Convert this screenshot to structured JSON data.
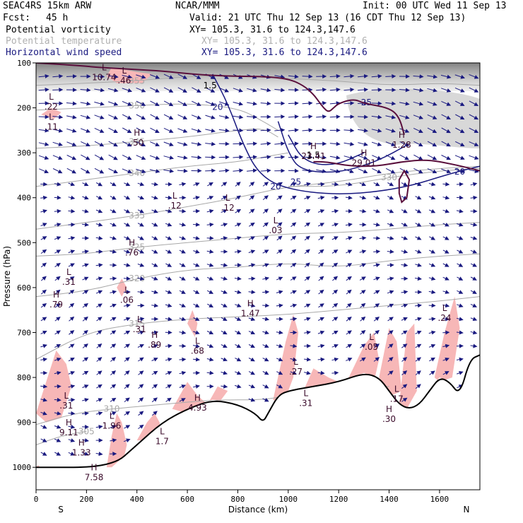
{
  "header": {
    "title": "SEAC4RS 15km ARW",
    "org": "NCAR/MMM",
    "init": "Init: 00 UTC Wed 11 Sep 13",
    "fcst_label": "Fcst:",
    "fcst_value": "45 h",
    "valid": "Valid: 21 UTC Thu 12 Sep 13 (16 CDT Thu 12 Sep 13)",
    "fields": [
      {
        "name": "Potential vorticity",
        "range": "XY= 105.3, 31.6 to 124.3,147.6",
        "color": "#000000"
      },
      {
        "name": "Potential temperature",
        "range": "XY= 105.3, 31.6 to 124.3,147.6",
        "color": "#b0b0b0"
      },
      {
        "name": "Horizontal wind speed",
        "range": "XY= 105.3, 31.6 to 124.3,147.6",
        "color": "#1a1a80"
      }
    ]
  },
  "chart_data": {
    "type": "cross-section",
    "xlabel": "Distance (km)",
    "ylabel": "Pressure (hPa)",
    "xlim": [
      0,
      1760
    ],
    "ylim": [
      100,
      1050
    ],
    "x_ticks": [
      0,
      200,
      400,
      600,
      800,
      1000,
      1200,
      1400,
      1600
    ],
    "y_ticks": [
      100,
      200,
      300,
      400,
      500,
      600,
      700,
      800,
      900,
      1000
    ],
    "left_end_label": "S",
    "right_end_label": "N",
    "colors": {
      "pv_shade": "#f7b7b7",
      "pv_contour": "#5a0f3c",
      "wind": "#1a1a80",
      "theta": "#a8a8a8",
      "terrain": "#000000",
      "upper_shade": "#8c8c8c"
    },
    "theta_contours": [
      {
        "label": "355",
        "points": [
          [
            0,
            150
          ],
          [
            200,
            145
          ],
          [
            400,
            140
          ],
          [
            600,
            130
          ],
          [
            800,
            128
          ],
          [
            1000,
            135
          ],
          [
            1200,
            140
          ],
          [
            1400,
            150
          ],
          [
            1600,
            145
          ],
          [
            1760,
            150
          ]
        ]
      },
      {
        "label": "350",
        "points": [
          [
            0,
            205
          ],
          [
            200,
            200
          ],
          [
            400,
            195
          ],
          [
            600,
            190
          ],
          [
            800,
            200
          ],
          [
            900,
            230
          ],
          [
            960,
            250
          ]
        ]
      },
      {
        "label": "345",
        "points": [
          [
            0,
            290
          ],
          [
            200,
            285
          ],
          [
            400,
            275
          ],
          [
            600,
            265
          ],
          [
            800,
            250
          ],
          [
            900,
            245
          ],
          [
            960,
            265
          ]
        ]
      },
      {
        "label": "340",
        "points": [
          [
            0,
            375
          ],
          [
            200,
            360
          ],
          [
            400,
            345
          ],
          [
            600,
            330
          ],
          [
            800,
            320
          ],
          [
            900,
            310
          ],
          [
            1000,
            300
          ]
        ]
      },
      {
        "label": "335",
        "points": [
          [
            0,
            470
          ],
          [
            200,
            455
          ],
          [
            400,
            440
          ],
          [
            600,
            420
          ],
          [
            800,
            400
          ],
          [
            1000,
            375
          ],
          [
            1200,
            365
          ],
          [
            1400,
            345
          ],
          [
            1600,
            335
          ],
          [
            1760,
            330
          ]
        ]
      },
      {
        "label": "330",
        "points": [
          [
            1000,
            375
          ],
          [
            1200,
            375
          ],
          [
            1400,
            355
          ],
          [
            1600,
            340
          ],
          [
            1760,
            335
          ]
        ]
      },
      {
        "label": "325",
        "points": [
          [
            0,
            530
          ],
          [
            200,
            525
          ],
          [
            400,
            510
          ],
          [
            600,
            500
          ],
          [
            800,
            490
          ],
          [
            1000,
            480
          ],
          [
            1200,
            478
          ],
          [
            1400,
            470
          ],
          [
            1600,
            460
          ],
          [
            1760,
            455
          ]
        ]
      },
      {
        "label": "320",
        "points": [
          [
            0,
            620
          ],
          [
            200,
            608
          ],
          [
            400,
            580
          ],
          [
            600,
            560
          ],
          [
            800,
            555
          ],
          [
            1000,
            545
          ],
          [
            1200,
            555
          ],
          [
            1400,
            540
          ],
          [
            1600,
            530
          ],
          [
            1760,
            525
          ]
        ]
      },
      {
        "label": "315",
        "points": [
          [
            0,
            760
          ],
          [
            200,
            700
          ],
          [
            400,
            680
          ],
          [
            600,
            670
          ],
          [
            800,
            665
          ],
          [
            1000,
            660
          ],
          [
            1200,
            650
          ],
          [
            1400,
            640
          ],
          [
            1600,
            630
          ],
          [
            1760,
            620
          ]
        ]
      },
      {
        "label": "310",
        "points": [
          [
            0,
            905
          ],
          [
            150,
            880
          ],
          [
            300,
            870
          ],
          [
            500,
            860
          ],
          [
            700,
            850
          ],
          [
            900,
            850
          ],
          [
            1000,
            840
          ],
          [
            1200,
            830
          ],
          [
            1400,
            820
          ]
        ]
      },
      {
        "label": "305",
        "points": [
          [
            0,
            950
          ],
          [
            100,
            930
          ],
          [
            200,
            920
          ]
        ]
      }
    ],
    "pv_contour_labels": [
      {
        "label": "1.5",
        "x": 690,
        "p": 150
      },
      {
        "label": "1.5",
        "x": 1100,
        "p": 305
      }
    ],
    "wind_contours": [
      {
        "label": "20",
        "points": [
          [
            700,
            125
          ],
          [
            760,
            190
          ],
          [
            820,
            280
          ],
          [
            880,
            345
          ],
          [
            980,
            380
          ],
          [
            1200,
            395
          ],
          [
            1450,
            380
          ],
          [
            1650,
            345
          ],
          [
            1760,
            330
          ]
        ]
      },
      {
        "label": "25",
        "points": [
          [
            960,
            230
          ],
          [
            1000,
            300
          ],
          [
            1050,
            340
          ],
          [
            1200,
            345
          ],
          [
            1350,
            320
          ],
          [
            1480,
            280
          ]
        ]
      },
      {
        "label": "30",
        "points": [
          [
            1000,
            260
          ],
          [
            1060,
            320
          ],
          [
            1180,
            330
          ],
          [
            1300,
            300
          ]
        ]
      }
    ],
    "wind_labels": [
      {
        "label": "20",
        "x": 720,
        "p": 198
      },
      {
        "label": "25",
        "x": 1310,
        "p": 188
      },
      {
        "label": "20",
        "x": 950,
        "p": 375
      },
      {
        "label": "25",
        "x": 1030,
        "p": 365
      },
      {
        "label": "20",
        "x": 1680,
        "p": 342
      }
    ],
    "extrema": [
      {
        "type": "L",
        "value": "10.74",
        "x": 270,
        "p": 120
      },
      {
        "type": "L",
        "value": ".22",
        "x": 60,
        "p": 185
      },
      {
        "type": "L",
        "value": ".11",
        "x": 60,
        "p": 230
      },
      {
        "type": "L",
        "value": ".46",
        "x": 350,
        "p": 127
      },
      {
        "type": "H",
        "value": ".50",
        "x": 400,
        "p": 265
      },
      {
        "type": "H",
        "value": "23.41",
        "x": 1100,
        "p": 295
      },
      {
        "type": "H",
        "value": "29.01",
        "x": 1300,
        "p": 310
      },
      {
        "type": "H",
        "value": "1.28",
        "x": 1450,
        "p": 270
      },
      {
        "type": "L",
        "value": ".12",
        "x": 550,
        "p": 405
      },
      {
        "type": "L",
        "value": ".12",
        "x": 760,
        "p": 410
      },
      {
        "type": "L",
        "value": ".03",
        "x": 950,
        "p": 460
      },
      {
        "type": "H",
        "value": ".76",
        "x": 380,
        "p": 510
      },
      {
        "type": "L",
        "value": ".31",
        "x": 130,
        "p": 575
      },
      {
        "type": "H",
        "value": ".79",
        "x": 80,
        "p": 625
      },
      {
        "type": "L",
        "value": ".06",
        "x": 360,
        "p": 615
      },
      {
        "type": "L",
        "value": ".31",
        "x": 410,
        "p": 680
      },
      {
        "type": "H",
        "value": ".89",
        "x": 470,
        "p": 715
      },
      {
        "type": "H",
        "value": "1.47",
        "x": 850,
        "p": 645
      },
      {
        "type": "L",
        "value": ".68",
        "x": 640,
        "p": 728
      },
      {
        "type": "L",
        "value": ".24",
        "x": 1620,
        "p": 655
      },
      {
        "type": "L",
        "value": ".05",
        "x": 1330,
        "p": 720
      },
      {
        "type": "L",
        "value": ".27",
        "x": 1030,
        "p": 775
      },
      {
        "type": "L",
        "value": ".31",
        "x": 1070,
        "p": 845
      },
      {
        "type": "L",
        "value": ".17",
        "x": 1430,
        "p": 835
      },
      {
        "type": "L",
        "value": ".31",
        "x": 120,
        "p": 850
      },
      {
        "type": "H",
        "value": "4.93",
        "x": 640,
        "p": 855
      },
      {
        "type": "L",
        "value": "1.96",
        "x": 300,
        "p": 895
      },
      {
        "type": "H",
        "value": "9.11",
        "x": 130,
        "p": 910
      },
      {
        "type": "L",
        "value": "1.7",
        "x": 500,
        "p": 930
      },
      {
        "type": "H",
        "value": "1.33",
        "x": 180,
        "p": 955
      },
      {
        "type": "H",
        "value": "7.58",
        "x": 230,
        "p": 1010
      },
      {
        "type": "H",
        "value": ".30",
        "x": 1400,
        "p": 880
      }
    ],
    "terrain_surface": [
      [
        0,
        1000
      ],
      [
        300,
        1000
      ],
      [
        400,
        950
      ],
      [
        500,
        900
      ],
      [
        600,
        870
      ],
      [
        700,
        850
      ],
      [
        800,
        860
      ],
      [
        870,
        880
      ],
      [
        900,
        900
      ],
      [
        920,
        880
      ],
      [
        960,
        840
      ],
      [
        1000,
        830
      ],
      [
        1100,
        820
      ],
      [
        1200,
        810
      ],
      [
        1300,
        790
      ],
      [
        1360,
        800
      ],
      [
        1400,
        830
      ],
      [
        1440,
        860
      ],
      [
        1480,
        870
      ],
      [
        1520,
        860
      ],
      [
        1560,
        830
      ],
      [
        1600,
        800
      ],
      [
        1640,
        810
      ],
      [
        1680,
        840
      ],
      [
        1720,
        760
      ],
      [
        1760,
        750
      ]
    ],
    "pv_high_areas": [
      [
        [
          0,
          880
        ],
        [
          40,
          810
        ],
        [
          80,
          740
        ],
        [
          120,
          770
        ],
        [
          140,
          820
        ],
        [
          100,
          890
        ],
        [
          40,
          900
        ]
      ],
      [
        [
          280,
          1000
        ],
        [
          300,
          930
        ],
        [
          320,
          880
        ],
        [
          340,
          900
        ],
        [
          360,
          950
        ],
        [
          340,
          1000
        ]
      ],
      [
        [
          400,
          940
        ],
        [
          440,
          900
        ],
        [
          470,
          880
        ],
        [
          490,
          900
        ],
        [
          500,
          940
        ]
      ],
      [
        [
          540,
          870
        ],
        [
          600,
          810
        ],
        [
          640,
          840
        ],
        [
          680,
          860
        ],
        [
          660,
          880
        ],
        [
          600,
          880
        ]
      ],
      [
        [
          600,
          680
        ],
        [
          620,
          650
        ],
        [
          640,
          680
        ],
        [
          630,
          710
        ]
      ],
      [
        [
          680,
          860
        ],
        [
          720,
          820
        ],
        [
          760,
          830
        ],
        [
          720,
          860
        ]
      ],
      [
        [
          940,
          850
        ],
        [
          990,
          720
        ],
        [
          1020,
          660
        ],
        [
          1040,
          700
        ],
        [
          1020,
          800
        ],
        [
          980,
          860
        ]
      ],
      [
        [
          1060,
          830
        ],
        [
          1100,
          780
        ],
        [
          1160,
          800
        ],
        [
          1200,
          810
        ],
        [
          1150,
          830
        ]
      ],
      [
        [
          1240,
          800
        ],
        [
          1300,
          730
        ],
        [
          1340,
          700
        ],
        [
          1360,
          760
        ],
        [
          1340,
          810
        ]
      ],
      [
        [
          1360,
          800
        ],
        [
          1400,
          690
        ],
        [
          1430,
          720
        ],
        [
          1450,
          830
        ],
        [
          1410,
          840
        ]
      ],
      [
        [
          1440,
          860
        ],
        [
          1470,
          700
        ],
        [
          1500,
          680
        ],
        [
          1510,
          830
        ],
        [
          1470,
          870
        ]
      ],
      [
        [
          1580,
          800
        ],
        [
          1620,
          700
        ],
        [
          1660,
          620
        ],
        [
          1680,
          690
        ],
        [
          1650,
          800
        ],
        [
          1600,
          810
        ]
      ],
      [
        [
          320,
          600
        ],
        [
          340,
          580
        ],
        [
          360,
          600
        ],
        [
          340,
          620
        ]
      ],
      [
        [
          280,
          130
        ],
        [
          300,
          110
        ],
        [
          400,
          120
        ],
        [
          460,
          125
        ],
        [
          420,
          145
        ],
        [
          320,
          145
        ]
      ],
      [
        [
          20,
          215
        ],
        [
          60,
          200
        ],
        [
          100,
          210
        ],
        [
          70,
          225
        ]
      ],
      [
        [
          0,
          1000
        ],
        [
          8,
          995
        ],
        [
          16,
          1000
        ]
      ]
    ],
    "pv_loop": [
      [
        1440,
        360
      ],
      [
        1460,
        340
      ],
      [
        1480,
        360
      ],
      [
        1470,
        400
      ],
      [
        1450,
        410
      ],
      [
        1440,
        390
      ]
    ]
  }
}
